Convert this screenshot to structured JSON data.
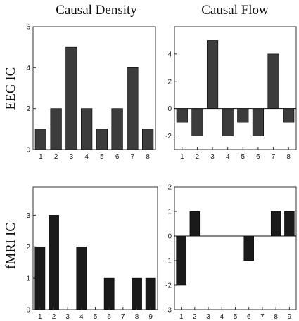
{
  "figure": {
    "column_titles": [
      "Causal Density",
      "Causal Flow"
    ],
    "row_titles": [
      "EEG IC",
      "fMRI IC"
    ]
  },
  "chart_data": [
    {
      "type": "bar",
      "panel": "EEG IC - Causal Density",
      "categories": [
        "1",
        "2",
        "3",
        "4",
        "5",
        "6",
        "7",
        "8"
      ],
      "values": [
        1,
        2,
        5,
        2,
        1,
        2,
        4,
        1
      ],
      "ylim": [
        0,
        6
      ],
      "yticks": [
        0,
        2,
        4,
        6
      ],
      "bar_color": "#3c3c3c"
    },
    {
      "type": "bar",
      "panel": "EEG IC - Causal Flow",
      "categories": [
        "1",
        "2",
        "3",
        "4",
        "5",
        "6",
        "7",
        "8"
      ],
      "values": [
        -1,
        -2,
        5,
        -2,
        -1,
        -2,
        4,
        -1
      ],
      "ylim": [
        -3,
        6
      ],
      "yticks": [
        -2,
        0,
        2,
        4
      ],
      "bar_color": "#3c3c3c"
    },
    {
      "type": "bar",
      "panel": "fMRI IC - Causal Density",
      "categories": [
        "1",
        "2",
        "3",
        "4",
        "5",
        "6",
        "7",
        "8",
        "9"
      ],
      "values": [
        2,
        3,
        0,
        2,
        0,
        1,
        0,
        1,
        1
      ],
      "ylim": [
        0,
        3.9
      ],
      "yticks": [
        0,
        1,
        2,
        3
      ],
      "bar_color": "#1a1a1a"
    },
    {
      "type": "bar",
      "panel": "fMRI IC - Causal Flow",
      "categories": [
        "1",
        "2",
        "3",
        "4",
        "5",
        "6",
        "7",
        "8",
        "9"
      ],
      "values": [
        -2,
        1,
        0,
        0,
        0,
        -1,
        0,
        1,
        1
      ],
      "ylim": [
        -3,
        2
      ],
      "yticks": [
        -3,
        -2,
        -1,
        0,
        1,
        2
      ],
      "bar_color": "#1a1a1a"
    }
  ]
}
